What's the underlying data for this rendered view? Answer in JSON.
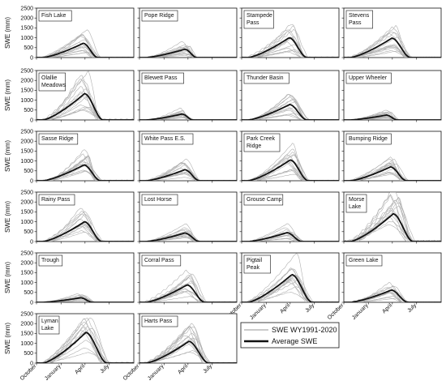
{
  "chart_data": {
    "type": "line",
    "ylabel": "SWE (mm)",
    "y_ticks": [
      0,
      500,
      1000,
      1500,
      2000,
      2500
    ],
    "ylim": [
      0,
      2500
    ],
    "x_tick_labels": [
      "October",
      "January",
      "April",
      "July"
    ],
    "x_tick_positions_days_since_oct1": [
      0,
      92,
      182,
      273
    ],
    "xlim_days_since_oct1": [
      0,
      365
    ],
    "grid": false,
    "legend": {
      "placement": "bottom-right",
      "entries": [
        {
          "label": "SWE WY1991-2020",
          "color": "#aaaaaa"
        },
        {
          "label": "Average SWE",
          "color": "#111111"
        }
      ]
    },
    "sites": [
      {
        "name": "Fish Lake",
        "peak": 720,
        "peak_day": 175,
        "melt_end": 230,
        "max_peak": 1400
      },
      {
        "name": "Pope Ridge",
        "peak": 420,
        "peak_day": 170,
        "melt_end": 215,
        "max_peak": 820
      },
      {
        "name": "Stampede Pass",
        "peak": 1000,
        "peak_day": 178,
        "melt_end": 245,
        "max_peak": 1700
      },
      {
        "name": "Stevens Pass",
        "peak": 980,
        "peak_day": 180,
        "melt_end": 250,
        "max_peak": 1600
      },
      {
        "name": "Olallie Meadows",
        "peak": 1330,
        "peak_day": 180,
        "melt_end": 250,
        "max_peak": 2450
      },
      {
        "name": "Blewett Pass",
        "peak": 300,
        "peak_day": 160,
        "melt_end": 200,
        "max_peak": 600
      },
      {
        "name": "Thunder Basin",
        "peak": 780,
        "peak_day": 180,
        "melt_end": 245,
        "max_peak": 1300
      },
      {
        "name": "Upper Wheeler",
        "peak": 250,
        "peak_day": 160,
        "melt_end": 200,
        "max_peak": 500
      },
      {
        "name": "Sasse Ridge",
        "peak": 800,
        "peak_day": 178,
        "melt_end": 240,
        "max_peak": 1600
      },
      {
        "name": "White Pass E.S.",
        "peak": 560,
        "peak_day": 170,
        "melt_end": 225,
        "max_peak": 1100
      },
      {
        "name": "Park Creek Ridge",
        "peak": 1050,
        "peak_day": 182,
        "melt_end": 250,
        "max_peak": 1900
      },
      {
        "name": "Bumping Ridge",
        "peak": 700,
        "peak_day": 175,
        "melt_end": 235,
        "max_peak": 1200
      },
      {
        "name": "Rainy Pass",
        "peak": 1000,
        "peak_day": 180,
        "melt_end": 245,
        "max_peak": 1700
      },
      {
        "name": "Lost Horse",
        "peak": 430,
        "peak_day": 170,
        "melt_end": 225,
        "max_peak": 900
      },
      {
        "name": "Grouse Camp",
        "peak": 450,
        "peak_day": 170,
        "melt_end": 225,
        "max_peak": 900
      },
      {
        "name": "Morse Lake",
        "peak": 1400,
        "peak_day": 185,
        "melt_end": 260,
        "max_peak": 2700
      },
      {
        "name": "Trough",
        "peak": 230,
        "peak_day": 165,
        "melt_end": 210,
        "max_peak": 430
      },
      {
        "name": "Corral Pass",
        "peak": 880,
        "peak_day": 178,
        "melt_end": 245,
        "max_peak": 1600
      },
      {
        "name": "Pigtail Peak",
        "peak": 1400,
        "peak_day": 188,
        "melt_end": 265,
        "max_peak": 2500
      },
      {
        "name": "Green Lake",
        "peak": 620,
        "peak_day": 178,
        "melt_end": 240,
        "max_peak": 1000
      },
      {
        "name": "Lyman Lake",
        "peak": 1550,
        "peak_day": 185,
        "melt_end": 265,
        "max_peak": 2300
      },
      {
        "name": "Harts Pass",
        "peak": 1100,
        "peak_day": 185,
        "melt_end": 260,
        "max_peak": 2000
      }
    ]
  },
  "panel_labels": [
    [
      "Fish Lake"
    ],
    [
      "Pope Ridge"
    ],
    [
      "Stampede",
      "Pass"
    ],
    [
      "Stevens",
      "Pass"
    ],
    [
      "Olallie",
      "Meadows"
    ],
    [
      "Blewett Pass"
    ],
    [
      "Thunder Basin"
    ],
    [
      "Upper Wheeler"
    ],
    [
      "Sasse Ridge"
    ],
    [
      "White Pass E.S."
    ],
    [
      "Park Creek",
      "Ridge"
    ],
    [
      "Bumping Ridge"
    ],
    [
      "Rainy Pass"
    ],
    [
      "Lost Horse"
    ],
    [
      "Grouse Camp"
    ],
    [
      "Morse",
      "Lake"
    ],
    [
      "Trough"
    ],
    [
      "Corral Pass"
    ],
    [
      "Pigtail",
      "Peak"
    ],
    [
      "Green Lake"
    ],
    [
      "Lyman",
      "Lake"
    ],
    [
      "Harts Pass"
    ]
  ]
}
